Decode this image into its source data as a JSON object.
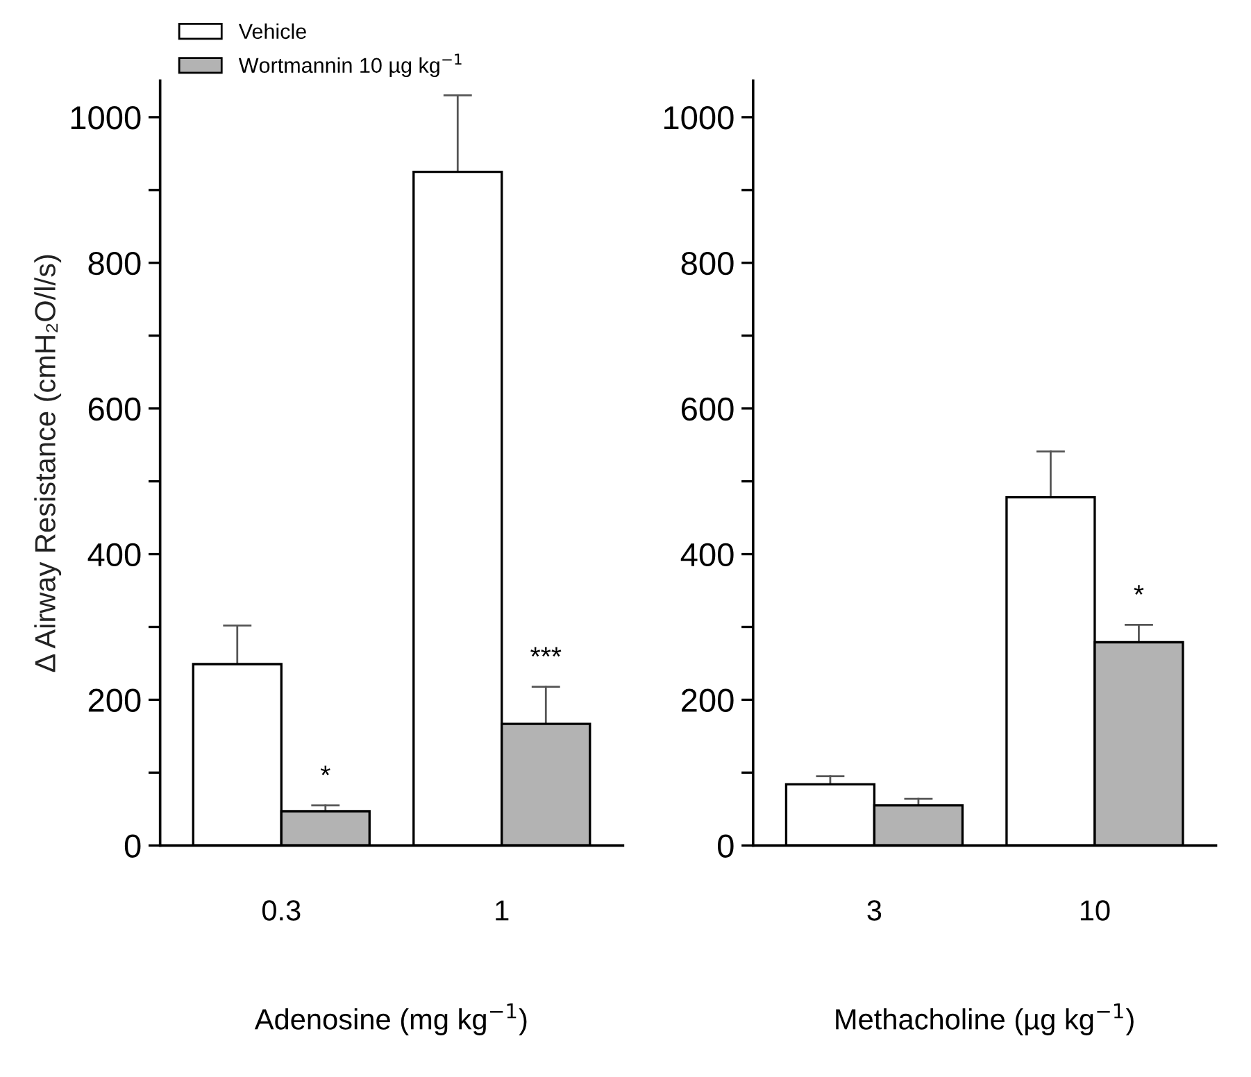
{
  "chart_data": [
    {
      "type": "bar",
      "categories": [
        "0.3",
        "1"
      ],
      "xlabel": "Adenosine (mg kg$^{−1}$)",
      "ylabel": "Δ Airway Resistance (cmH₂O/l/s)",
      "ylim": [
        0,
        1050
      ],
      "yticks": [
        0,
        {
          "value": 100,
          "label": null
        },
        200,
        {
          "value": 300,
          "label": null
        },
        400,
        {
          "value": 500,
          "label": null
        },
        600,
        {
          "value": 700,
          "label": null
        },
        800,
        {
          "value": 900,
          "label": null
        },
        1000
      ],
      "legend": "top left",
      "grid": false,
      "series": [
        {
          "name": "Vehicle",
          "color": "#ffffff",
          "values": [
            249,
            925
          ],
          "errors": [
            [
              249,
              302
            ],
            [
              925,
              1030
            ]
          ]
        },
        {
          "name": "Wortmannin 10 µg kg$^{−1}$",
          "color": "#b3b3b3",
          "values": [
            47,
            167
          ],
          "errors": [
            [
              47,
              55
            ],
            [
              167,
              218
            ]
          ]
        }
      ],
      "annotations": [
        {
          "text": "*",
          "x": "0.3",
          "y": 55
        },
        {
          "text": "***",
          "x": "1",
          "y": 218
        }
      ]
    },
    {
      "type": "bar",
      "categories": [
        "3",
        "10"
      ],
      "xlabel": "Methacholine (µg kg$^{−1}$)",
      "ylim": [
        0,
        1050
      ],
      "yticks": [
        0,
        {
          "value": 100,
          "label": null
        },
        200,
        {
          "value": 300,
          "label": null
        },
        400,
        {
          "value": 500,
          "label": null
        },
        600,
        {
          "value": 700,
          "label": null
        },
        800,
        {
          "value": 900,
          "label": null
        },
        1000
      ],
      "grid": false,
      "series": [
        {
          "color": "#ffffff",
          "values": [
            84,
            478
          ],
          "errors": [
            [
              84,
              95
            ],
            [
              478,
              541
            ]
          ]
        },
        {
          "color": "#b3b3b3",
          "values": [
            55,
            279
          ],
          "errors": [
            [
              55,
              64
            ],
            [
              279,
              303
            ]
          ]
        }
      ],
      "annotations": [
        {
          "text": "*",
          "x": "10",
          "y": 303
        }
      ]
    }
  ]
}
